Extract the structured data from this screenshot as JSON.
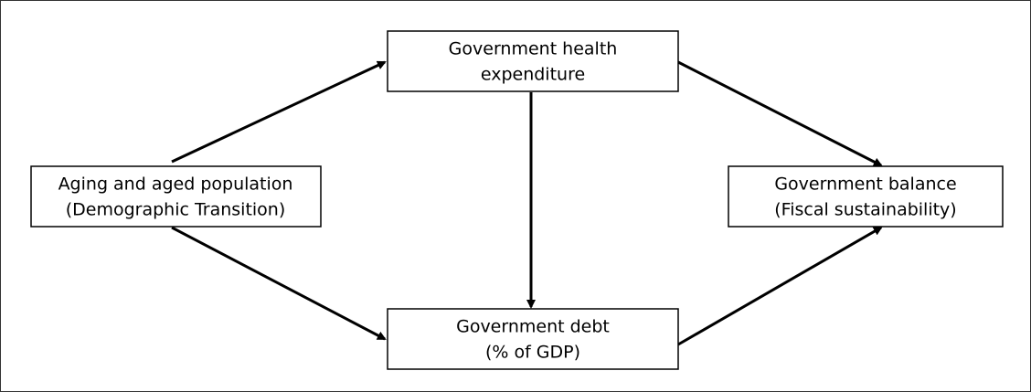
{
  "nodes": [
    {
      "lines": [
        "Aging and aged population",
        "(Demographic Transition)"
      ]
    },
    {
      "lines": [
        "Government health",
        "expenditure"
      ]
    },
    {
      "lines": [
        "Government debt",
        "(% of GDP)"
      ]
    },
    {
      "lines": [
        "Government balance",
        "(Fiscal sustainability)"
      ]
    }
  ]
}
